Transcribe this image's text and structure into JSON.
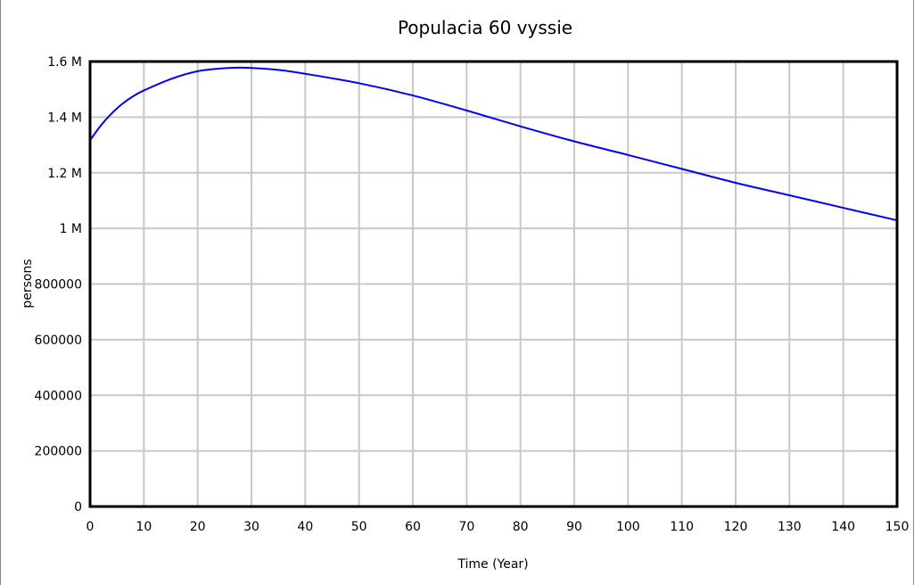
{
  "chart_data": {
    "type": "line",
    "title": "Populacia 60 vyssie",
    "xlabel": "Time (Year)",
    "ylabel": "persons",
    "xlim": [
      0,
      150
    ],
    "ylim": [
      0,
      1600000
    ],
    "x_ticks": [
      0,
      10,
      20,
      30,
      40,
      50,
      60,
      70,
      80,
      90,
      100,
      110,
      120,
      130,
      140,
      150
    ],
    "x_tick_labels": [
      "0",
      "10",
      "20",
      "30",
      "40",
      "50",
      "60",
      "70",
      "80",
      "90",
      "100",
      "110",
      "120",
      "130",
      "140",
      "150"
    ],
    "y_ticks": [
      0,
      200000,
      400000,
      600000,
      800000,
      1000000,
      1200000,
      1400000,
      1600000
    ],
    "y_tick_labels": [
      "0",
      "200000",
      "400000",
      "600000",
      "800000",
      "1 M",
      "1.2 M",
      "1.4 M",
      "1.6 M"
    ],
    "grid": true,
    "legend": "none",
    "series": [
      {
        "color": "#0000ff",
        "x": [
          0,
          2,
          4,
          6,
          8,
          10,
          15,
          20,
          25,
          28,
          30,
          35,
          40,
          50,
          60,
          70,
          80,
          90,
          100,
          110,
          120,
          130,
          140,
          150
        ],
        "values": [
          1317000,
          1370000,
          1413000,
          1448000,
          1475000,
          1496000,
          1537000,
          1565000,
          1576000,
          1578000,
          1577000,
          1570000,
          1556000,
          1522000,
          1478000,
          1424000,
          1367000,
          1313000,
          1264000,
          1214000,
          1164000,
          1119000,
          1074000,
          1029000
        ]
      }
    ]
  }
}
